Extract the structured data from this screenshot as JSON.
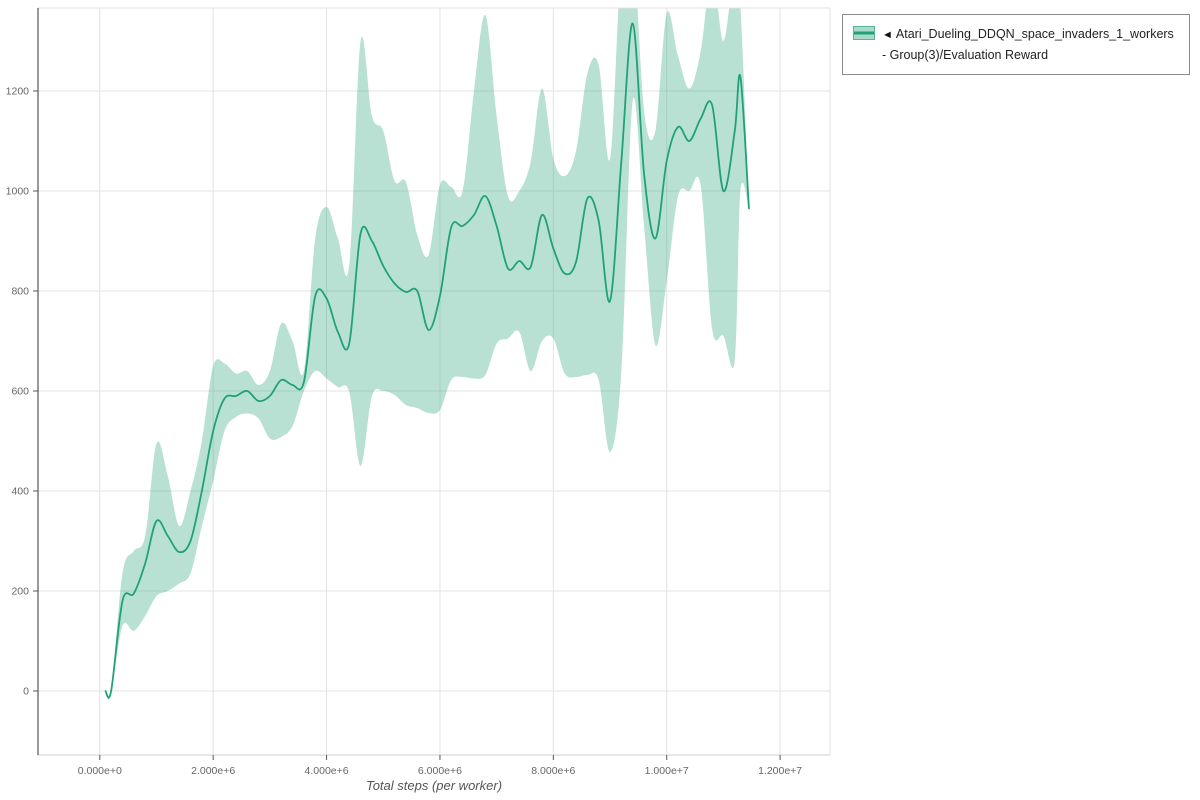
{
  "legend": {
    "toggle_icon": "◄",
    "label": "Atari_Dueling_DDQN_space_invaders_1_workers - Group(3)/Evaluation Reward"
  },
  "colors": {
    "line": "#21a179",
    "band": "rgba(33,161,121,0.32)",
    "grid": "#e3e3e3",
    "spine_left": "#333333",
    "spine_other": "#e0e0e0",
    "tick": "#666666",
    "axis_label": "#555555"
  },
  "chart_data": {
    "type": "line",
    "title": "",
    "xlabel": "Total steps (per worker)",
    "ylabel": "",
    "legend_position": "top-right-outside",
    "grid": true,
    "xlim": [
      -1090000,
      12880000
    ],
    "ylim": [
      -128,
      1366
    ],
    "x_ticks": [
      {
        "value": 0,
        "label": "0.000e+0"
      },
      {
        "value": 2000000,
        "label": "2.000e+6"
      },
      {
        "value": 4000000,
        "label": "4.000e+6"
      },
      {
        "value": 6000000,
        "label": "6.000e+6"
      },
      {
        "value": 8000000,
        "label": "8.000e+6"
      },
      {
        "value": 10000000,
        "label": "1.000e+7"
      },
      {
        "value": 12000000,
        "label": "1.200e+7"
      }
    ],
    "y_ticks": [
      {
        "value": 0,
        "label": "0"
      },
      {
        "value": 200,
        "label": "200"
      },
      {
        "value": 400,
        "label": "400"
      },
      {
        "value": 600,
        "label": "600"
      },
      {
        "value": 800,
        "label": "800"
      },
      {
        "value": 1000,
        "label": "1000"
      },
      {
        "value": 1200,
        "label": "1200"
      }
    ],
    "series": [
      {
        "name": "Atari_Dueling_DDQN_space_invaders_1_workers - Group(3)/Evaluation Reward",
        "color": "#21a179",
        "band_color": "rgba(33,161,121,0.32)",
        "x": [
          100000,
          200000,
          400000,
          600000,
          800000,
          1000000,
          1200000,
          1400000,
          1600000,
          1800000,
          2000000,
          2200000,
          2400000,
          2600000,
          2800000,
          3000000,
          3200000,
          3400000,
          3600000,
          3800000,
          4000000,
          4200000,
          4400000,
          4600000,
          4800000,
          5000000,
          5200000,
          5400000,
          5600000,
          5800000,
          6000000,
          6200000,
          6400000,
          6600000,
          6800000,
          7000000,
          7200000,
          7400000,
          7600000,
          7800000,
          8000000,
          8200000,
          8400000,
          8600000,
          8800000,
          9000000,
          9200000,
          9400000,
          9600000,
          9800000,
          10000000,
          10200000,
          10400000,
          10600000,
          10800000,
          11000000,
          11200000,
          11300000,
          11450000
        ],
        "mean": [
          0,
          0,
          180,
          195,
          255,
          340,
          310,
          278,
          300,
          400,
          520,
          585,
          590,
          600,
          580,
          590,
          622,
          612,
          618,
          790,
          785,
          718,
          695,
          915,
          900,
          850,
          815,
          798,
          800,
          722,
          790,
          928,
          930,
          952,
          990,
          930,
          845,
          860,
          848,
          952,
          885,
          835,
          858,
          985,
          940,
          780,
          1060,
          1335,
          1035,
          905,
          1060,
          1128,
          1100,
          1145,
          1172,
          1000,
          1120,
          1228,
          965
        ],
        "lo": [
          0,
          0,
          130,
          120,
          150,
          190,
          200,
          215,
          235,
          330,
          420,
          520,
          548,
          555,
          545,
          505,
          508,
          530,
          600,
          640,
          625,
          608,
          598,
          450,
          590,
          600,
          592,
          572,
          566,
          556,
          562,
          622,
          628,
          625,
          632,
          695,
          705,
          718,
          640,
          700,
          705,
          635,
          628,
          632,
          622,
          478,
          640,
          1180,
          930,
          692,
          820,
          990,
          1000,
          1010,
          725,
          710,
          660,
          1000,
          965
        ],
        "hi": [
          0,
          0,
          235,
          280,
          310,
          495,
          430,
          330,
          400,
          500,
          650,
          655,
          635,
          640,
          612,
          640,
          735,
          700,
          640,
          905,
          968,
          905,
          852,
          1300,
          1150,
          1120,
          1020,
          1018,
          912,
          872,
          1012,
          1008,
          1000,
          1200,
          1352,
          1150,
          990,
          1000,
          1058,
          1205,
          1065,
          1030,
          1080,
          1235,
          1252,
          1065,
          1460,
          1500,
          1160,
          1120,
          1355,
          1270,
          1205,
          1280,
          1440,
          1300,
          1450,
          1370,
          965
        ]
      }
    ]
  }
}
